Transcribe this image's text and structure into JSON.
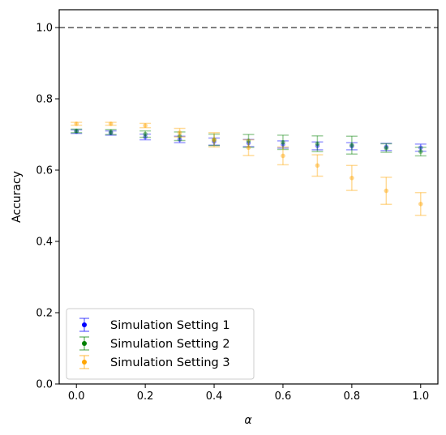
{
  "chart_data": {
    "type": "scatter",
    "xlabel": "α",
    "ylabel": "Accuracy",
    "xlim": [
      -0.05,
      1.05
    ],
    "ylim": [
      0.0,
      1.05
    ],
    "xticks": [
      "0.0",
      "0.2",
      "0.4",
      "0.6",
      "0.8",
      "1.0"
    ],
    "yticks": [
      "0.0",
      "0.2",
      "0.4",
      "0.6",
      "0.8",
      "1.0"
    ],
    "grid": false,
    "legend_position": "lower-left",
    "reference_line": {
      "y": 1.0,
      "style": "dashed",
      "color": "#808080"
    },
    "x": [
      0.0,
      0.1,
      0.2,
      0.3,
      0.4,
      0.5,
      0.6,
      0.7,
      0.8,
      0.9,
      1.0
    ],
    "series": [
      {
        "name": "Simulation Setting 1",
        "color": "#0000ff",
        "values": [
          0.708,
          0.704,
          0.693,
          0.686,
          0.68,
          0.676,
          0.672,
          0.668,
          0.667,
          0.665,
          0.663
        ],
        "errors": [
          0.005,
          0.006,
          0.008,
          0.009,
          0.01,
          0.01,
          0.01,
          0.011,
          0.01,
          0.01,
          0.01
        ]
      },
      {
        "name": "Simulation Setting 2",
        "color": "#008000",
        "values": [
          0.71,
          0.707,
          0.701,
          0.695,
          0.685,
          0.682,
          0.678,
          0.674,
          0.67,
          0.662,
          0.652
        ],
        "errors": [
          0.005,
          0.007,
          0.009,
          0.012,
          0.016,
          0.018,
          0.02,
          0.022,
          0.025,
          0.012,
          0.012
        ]
      },
      {
        "name": "Simulation Setting 3",
        "color": "#ffa500",
        "values": [
          0.73,
          0.73,
          0.725,
          0.705,
          0.685,
          0.663,
          0.64,
          0.613,
          0.578,
          0.542,
          0.505
        ],
        "errors": [
          0.004,
          0.004,
          0.006,
          0.012,
          0.02,
          0.022,
          0.025,
          0.03,
          0.035,
          0.038,
          0.032
        ]
      }
    ]
  }
}
